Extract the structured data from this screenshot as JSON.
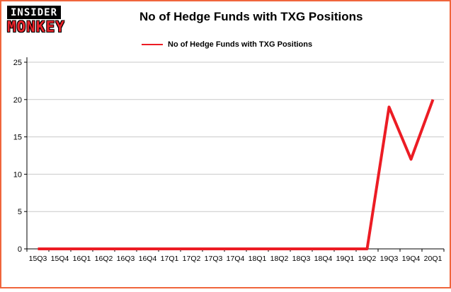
{
  "page": {
    "border_color": "#f0653c",
    "background": "#ffffff"
  },
  "header": {
    "logo": {
      "top": "INSIDER",
      "bottom": "MONKEY"
    },
    "title": "No of Hedge Funds with TXG Positions"
  },
  "legend": {
    "label": "No of Hedge Funds with TXG Positions",
    "swatch_color": "#ec1c24"
  },
  "chart_data": {
    "type": "line",
    "title": "No of Hedge Funds with TXG Positions",
    "categories": [
      "15Q3",
      "15Q4",
      "16Q1",
      "16Q2",
      "16Q3",
      "16Q4",
      "17Q1",
      "17Q2",
      "17Q3",
      "17Q4",
      "18Q1",
      "18Q2",
      "18Q3",
      "18Q4",
      "19Q1",
      "19Q2",
      "19Q3",
      "19Q4",
      "20Q1"
    ],
    "series": [
      {
        "name": "No of Hedge Funds with TXG Positions",
        "values": [
          0,
          0,
          0,
          0,
          0,
          0,
          0,
          0,
          0,
          0,
          0,
          0,
          0,
          0,
          0,
          0,
          19,
          12,
          20
        ]
      }
    ],
    "xlabel": "",
    "ylabel": "",
    "ylim": [
      0,
      25
    ],
    "yticks": [
      0,
      5,
      10,
      15,
      20,
      25
    ],
    "grid": true,
    "gridline_color": "#c9c9c9",
    "axis_color": "#000000",
    "line_color": "#ec1c24",
    "line_width": 4,
    "legend_position": "top-left"
  }
}
